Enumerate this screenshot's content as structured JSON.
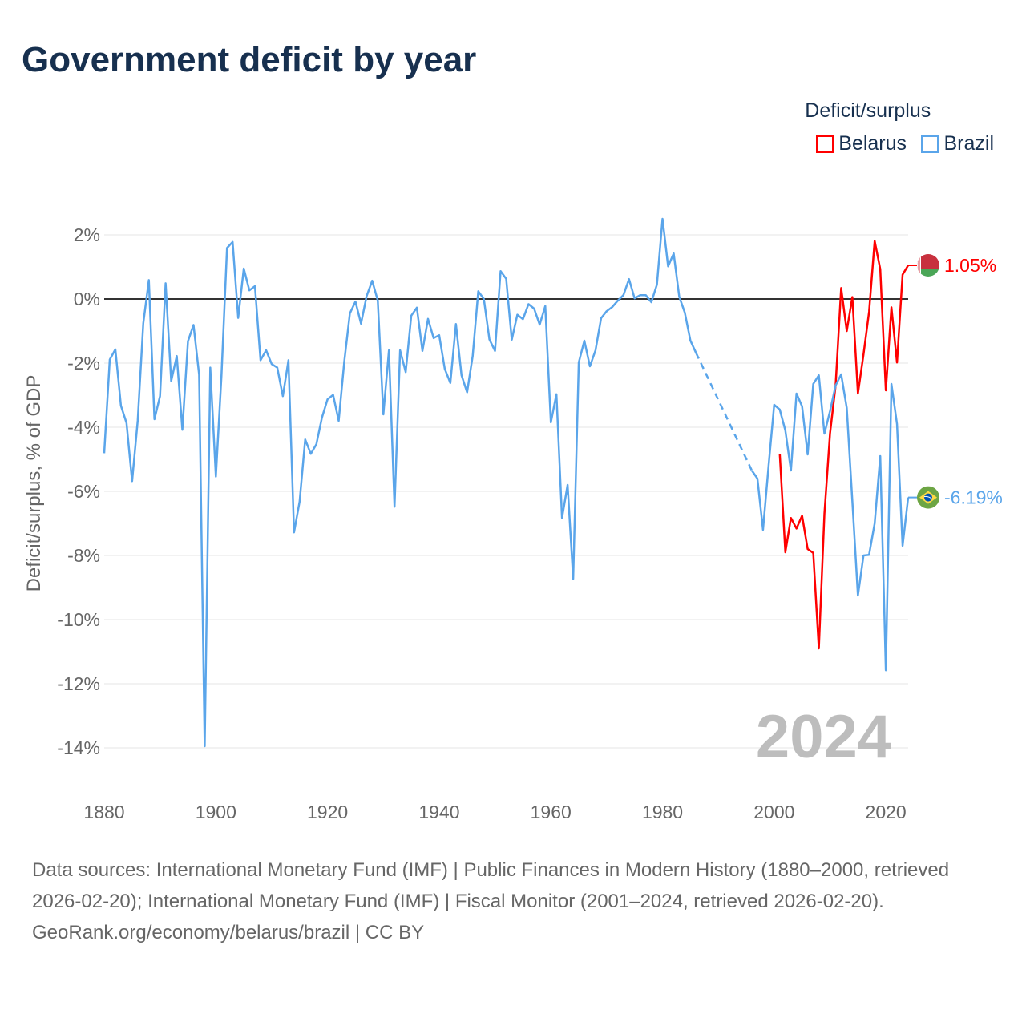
{
  "title": "Government deficit by year",
  "legend": {
    "title": "Deficit/surplus",
    "position": "top-right"
  },
  "footer": {
    "sources": "Data sources: International Monetary Fund (IMF) | Public Finances in Modern History (1880–2000, retrieved 2026-02-20); International Monetary Fund (IMF) | Fiscal Monitor (2001–2024, retrieved 2026-02-20).",
    "credit": "GeoRank.org/economy/belarus/brazil | CC BY"
  },
  "chart_data": {
    "type": "line",
    "title": "Government deficit by year",
    "ylabel": "Deficit/surplus, % of GDP",
    "xlabel": "",
    "xlim": [
      1880,
      2024
    ],
    "ylim": [
      -14,
      2
    ],
    "xticks": [
      1880,
      1900,
      1920,
      1940,
      1960,
      1980,
      2000,
      2020
    ],
    "yticks": [
      2,
      0,
      -2,
      -4,
      -6,
      -8,
      -10,
      -12,
      -14
    ],
    "ytick_labels": [
      "2%",
      "0%",
      "-2%",
      "-4%",
      "-6%",
      "-8%",
      "-10%",
      "-12%",
      "-14%"
    ],
    "xtick_labels": [
      "1880",
      "1900",
      "1920",
      "1940",
      "1960",
      "1980",
      "2000",
      "2020"
    ],
    "grid": true,
    "year_watermark": "2024",
    "series": [
      {
        "name": "Belarus",
        "color": "#ff0000",
        "end_label": "1.05%",
        "start_year": 2001,
        "values": [
          -4.83,
          -7.9,
          -6.83,
          -7.16,
          -6.76,
          -7.8,
          -7.92,
          -10.9,
          -6.7,
          -4.2,
          -2.7,
          0.34,
          -1.0,
          0.06,
          -2.95,
          -1.73,
          -0.4,
          1.81,
          0.93,
          -2.85,
          -0.26,
          -1.98,
          0.76,
          1.05
        ]
      },
      {
        "name": "Brazil",
        "color": "#5aa5ea",
        "end_label": "-6.19%",
        "start_year": 1880,
        "values": [
          -4.81,
          -1.89,
          -1.57,
          -3.33,
          -3.87,
          -5.68,
          -3.8,
          -0.76,
          0.59,
          -3.75,
          -3.03,
          0.49,
          -2.56,
          -1.78,
          -4.08,
          -1.32,
          -0.81,
          -2.36,
          -13.95,
          -2.14,
          -5.54,
          -2.4,
          1.59,
          1.78,
          -0.59,
          0.95,
          0.27,
          0.4,
          -1.91,
          -1.6,
          -2.03,
          -2.14,
          -3.03,
          -1.91,
          -7.28,
          -6.32,
          -4.38,
          -4.83,
          -4.53,
          -3.7,
          -3.13,
          -2.99,
          -3.8,
          -1.95,
          -0.45,
          -0.08,
          -0.77,
          0.09,
          0.57,
          -0.05,
          -3.6,
          -1.6,
          -6.48,
          -1.6,
          -2.28,
          -0.52,
          -0.27,
          -1.62,
          -0.62,
          -1.22,
          -1.13,
          -2.18,
          -2.62,
          -0.78,
          -2.38,
          -2.91,
          -1.78,
          0.24,
          0.0,
          -1.26,
          -1.62,
          0.87,
          0.63,
          -1.27,
          -0.49,
          -0.63,
          -0.16,
          -0.3,
          -0.8,
          -0.22,
          -3.85,
          -2.97,
          -6.83,
          -5.8,
          -8.73,
          -1.98,
          -1.3,
          -2.1,
          -1.6,
          -0.6,
          -0.38,
          -0.25,
          -0.05,
          0.12,
          0.62,
          0.02,
          0.12,
          0.12,
          -0.1,
          0.45,
          2.5,
          1.02,
          1.42,
          0.07,
          -0.43,
          -1.3,
          -1.68,
          null,
          null,
          null,
          null,
          null,
          null,
          null,
          null,
          null,
          -5.35,
          -5.6,
          -7.2,
          -5.2,
          -3.3,
          -3.45,
          -4.1,
          -5.35,
          -2.95,
          -3.35,
          -4.85,
          -2.65,
          -2.38,
          -4.2,
          -3.5,
          -2.7,
          -2.35,
          -3.4,
          -6.3,
          -9.25,
          -8.0,
          -7.98,
          -7.0,
          -4.9,
          -11.58,
          -2.65,
          -3.9,
          -7.7,
          -6.19
        ]
      }
    ]
  }
}
